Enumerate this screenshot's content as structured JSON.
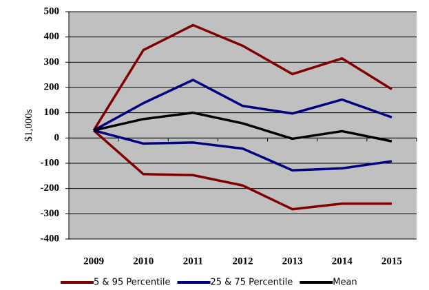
{
  "chart_data": {
    "type": "line",
    "y_label": "$1,000s",
    "categories": [
      "2009",
      "2010",
      "2011",
      "2012",
      "2013",
      "2014",
      "2015"
    ],
    "series": [
      {
        "name": "5 & 95 Percentile",
        "color": "#800000",
        "values": [
          30,
          348,
          447,
          365,
          253,
          315,
          193
        ]
      },
      {
        "color": "#800000",
        "values": [
          30,
          -143,
          -147,
          -188,
          -282,
          -260,
          -260
        ]
      },
      {
        "name": "25 & 75 Percentile",
        "color": "#000080",
        "values": [
          30,
          138,
          230,
          127,
          97,
          152,
          82
        ]
      },
      {
        "color": "#000080",
        "values": [
          30,
          -22,
          -18,
          -42,
          -128,
          -120,
          -92
        ]
      },
      {
        "name": "Mean",
        "color": "#000000",
        "values": [
          30,
          75,
          100,
          58,
          -3,
          27,
          -13
        ]
      }
    ],
    "ylim": [
      -400,
      500
    ],
    "yticks": [
      -400,
      -300,
      -200,
      -100,
      0,
      100,
      200,
      300,
      400,
      500
    ],
    "grid": true,
    "background": "#c0c0c0",
    "legend": "bottom"
  }
}
